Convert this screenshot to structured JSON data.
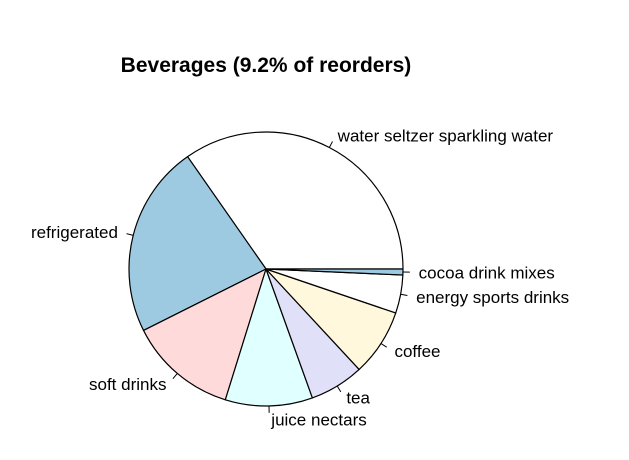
{
  "chart_data": {
    "type": "pie",
    "title": "Beverages (9.2% of reorders)",
    "start_angle_deg": 0,
    "direction": "counterclockwise",
    "slices": [
      {
        "label": "water seltzer sparkling water",
        "value": 34.7,
        "color": "#ffffff"
      },
      {
        "label": "refrigerated",
        "value": 22.7,
        "color": "#9ecae1"
      },
      {
        "label": "soft drinks",
        "value": 12.8,
        "color": "#ffdada"
      },
      {
        "label": "juice nectars",
        "value": 10.3,
        "color": "#e0ffff"
      },
      {
        "label": "tea",
        "value": 6.4,
        "color": "#e0e0f8"
      },
      {
        "label": "coffee",
        "value": 7.9,
        "color": "#fff8dc"
      },
      {
        "label": "energy sports drinks",
        "value": 4.5,
        "color": "#ffffff"
      },
      {
        "label": "cocoa drink mixes",
        "value": 0.7,
        "color": "#9ecae1"
      }
    ]
  }
}
